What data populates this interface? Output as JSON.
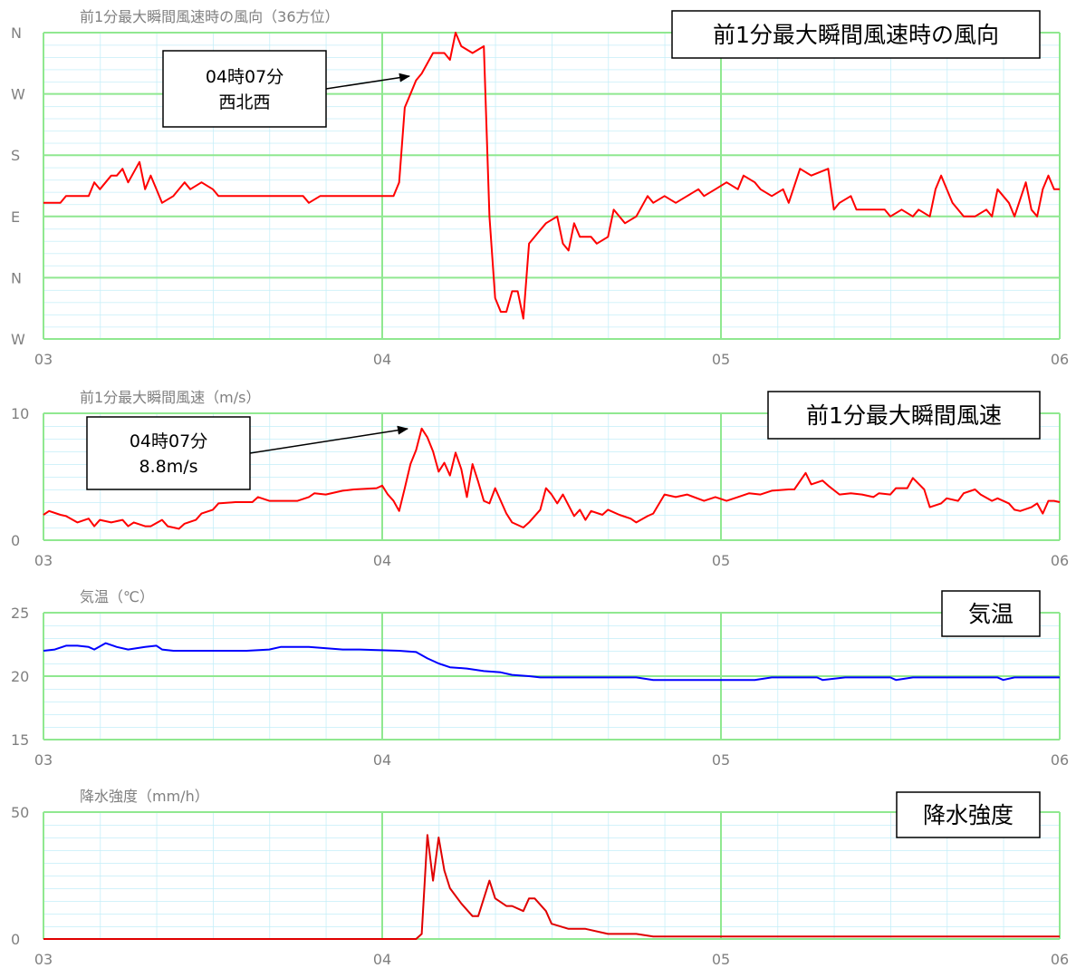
{
  "chart_data": [
    {
      "type": "line",
      "title": "前1分最大瞬間風速時の風向（36方位）",
      "label": "前1分最大瞬間風速時の風向",
      "annotation": [
        "04時07分",
        "西北西"
      ],
      "color": "#ff0000",
      "grid": true,
      "xlim": [
        180,
        360
      ],
      "xticks": [
        {
          "value": 180,
          "label": "03"
        },
        {
          "value": 240,
          "label": "04"
        },
        {
          "value": 300,
          "label": "05"
        },
        {
          "value": 360,
          "label": "06"
        }
      ],
      "ylim": [
        -90,
        360
      ],
      "yticks": [
        {
          "value": -90,
          "label": "W"
        },
        {
          "value": 0,
          "label": "N"
        },
        {
          "value": 90,
          "label": "E"
        },
        {
          "value": 180,
          "label": "S"
        },
        {
          "value": 270,
          "label": "W"
        },
        {
          "value": 360,
          "label": "N"
        }
      ],
      "x": [
        180,
        183,
        184,
        188,
        189,
        190,
        192,
        193,
        194,
        195,
        197,
        198,
        199,
        200,
        201,
        203,
        205,
        206,
        208,
        210,
        211,
        213,
        214,
        217,
        219,
        220,
        226,
        227,
        229,
        242,
        243,
        244,
        245,
        246,
        247,
        249,
        251,
        252,
        253,
        254,
        256,
        258,
        259,
        260,
        261,
        262,
        263,
        264,
        265,
        266,
        268,
        269,
        271,
        272,
        273,
        274,
        275,
        277,
        278,
        280,
        281,
        283,
        285,
        287,
        288,
        290,
        292,
        294,
        296,
        297,
        299,
        301,
        303,
        304,
        306,
        307,
        309,
        311,
        312,
        314,
        316,
        319,
        320,
        321,
        323,
        324,
        326,
        329,
        330,
        332,
        334,
        335,
        337,
        338,
        339,
        341,
        343,
        345,
        347,
        348,
        349,
        351,
        352,
        354,
        355,
        356,
        357,
        358,
        359,
        360
      ],
      "values": [
        110,
        110,
        120,
        120,
        140,
        130,
        150,
        150,
        160,
        140,
        170,
        130,
        150,
        130,
        110,
        120,
        140,
        130,
        140,
        130,
        120,
        120,
        120,
        120,
        120,
        120,
        120,
        110,
        120,
        120,
        140,
        250,
        270,
        290,
        300,
        330,
        330,
        320,
        360,
        340,
        330,
        340,
        90,
        -30,
        -50,
        -50,
        -20,
        -20,
        -60,
        50,
        70,
        80,
        90,
        50,
        40,
        80,
        60,
        60,
        50,
        60,
        100,
        80,
        90,
        120,
        110,
        120,
        110,
        120,
        130,
        120,
        130,
        140,
        130,
        150,
        140,
        130,
        120,
        130,
        110,
        160,
        150,
        160,
        100,
        110,
        120,
        100,
        100,
        100,
        90,
        100,
        90,
        100,
        90,
        130,
        150,
        110,
        90,
        90,
        100,
        90,
        130,
        110,
        90,
        140,
        100,
        90,
        130,
        150,
        130,
        130
      ]
    },
    {
      "type": "line",
      "title": "前1分最大瞬間風速（m/s）",
      "label": "前1分最大瞬間風速",
      "annotation": [
        "04時07分",
        "8.8m/s"
      ],
      "color": "#ff0000",
      "grid": true,
      "xlim": [
        180,
        360
      ],
      "xticks": [
        {
          "value": 180,
          "label": "03"
        },
        {
          "value": 240,
          "label": "04"
        },
        {
          "value": 300,
          "label": "05"
        },
        {
          "value": 360,
          "label": "06"
        }
      ],
      "ylim": [
        0,
        10
      ],
      "yticks": [
        0,
        10
      ],
      "x": [
        180,
        181,
        183,
        184,
        186,
        188,
        189,
        190,
        192,
        194,
        195,
        196,
        198,
        199,
        201,
        202,
        204,
        205,
        207,
        208,
        210,
        211,
        214,
        217,
        218,
        220,
        225,
        227,
        228,
        230,
        233,
        235,
        239,
        240,
        241,
        242,
        243,
        244,
        245,
        246,
        247,
        248,
        249,
        250,
        251,
        252,
        253,
        254,
        255,
        256,
        257,
        258,
        259,
        260,
        262,
        263,
        265,
        266,
        268,
        269,
        270,
        271,
        272,
        274,
        275,
        276,
        277,
        279,
        280,
        282,
        284,
        285,
        287,
        288,
        290,
        292,
        294,
        297,
        299,
        301,
        303,
        305,
        307,
        309,
        312,
        313,
        315,
        316,
        318,
        319,
        321,
        323,
        325,
        327,
        328,
        330,
        331,
        333,
        334,
        336,
        337,
        339,
        340,
        342,
        343,
        345,
        346,
        348,
        349,
        351,
        352,
        353,
        355,
        356,
        357,
        358,
        359,
        360
      ],
      "values": [
        2.0,
        2.3,
        2.0,
        1.9,
        1.4,
        1.7,
        1.1,
        1.6,
        1.4,
        1.6,
        1.1,
        1.4,
        1.1,
        1.1,
        1.6,
        1.1,
        0.9,
        1.3,
        1.6,
        2.1,
        2.4,
        2.9,
        3.0,
        3.0,
        3.4,
        3.1,
        3.1,
        3.4,
        3.7,
        3.6,
        3.9,
        4.0,
        4.1,
        4.3,
        3.6,
        3.1,
        2.3,
        4.1,
        6.0,
        7.1,
        8.8,
        8.1,
        7.0,
        5.4,
        6.1,
        5.1,
        6.9,
        5.6,
        3.4,
        6.0,
        4.6,
        3.1,
        2.9,
        4.1,
        2.1,
        1.4,
        1.0,
        1.4,
        2.4,
        4.1,
        3.6,
        2.9,
        3.6,
        1.9,
        2.4,
        1.6,
        2.3,
        2.0,
        2.4,
        2.0,
        1.7,
        1.4,
        1.9,
        2.1,
        3.6,
        3.4,
        3.6,
        3.1,
        3.4,
        3.1,
        3.4,
        3.7,
        3.6,
        3.9,
        4.0,
        4.0,
        5.3,
        4.4,
        4.7,
        4.3,
        3.6,
        3.7,
        3.6,
        3.4,
        3.7,
        3.6,
        4.1,
        4.1,
        4.9,
        4.0,
        2.6,
        2.9,
        3.3,
        3.1,
        3.7,
        4.0,
        3.6,
        3.1,
        3.3,
        2.9,
        2.4,
        2.3,
        2.6,
        2.9,
        2.1,
        3.1,
        3.1,
        3.0
      ]
    },
    {
      "type": "line",
      "title": "気温（℃）",
      "label": "気温",
      "color": "#0000ff",
      "grid": true,
      "xlim": [
        180,
        360
      ],
      "xticks": [
        {
          "value": 180,
          "label": "03"
        },
        {
          "value": 240,
          "label": "04"
        },
        {
          "value": 300,
          "label": "05"
        },
        {
          "value": 360,
          "label": "06"
        }
      ],
      "ylim": [
        15,
        25
      ],
      "yticks": [
        15,
        20,
        25
      ],
      "x": [
        180,
        182,
        184,
        186,
        188,
        189,
        191,
        193,
        195,
        198,
        200,
        201,
        203,
        208,
        216,
        220,
        222,
        227,
        233,
        236,
        243,
        246,
        248,
        250,
        252,
        255,
        258,
        261,
        263,
        266,
        268,
        275,
        285,
        288,
        299,
        306,
        309,
        317,
        318,
        322,
        330,
        331,
        334,
        349,
        350,
        352,
        360
      ],
      "values": [
        22.0,
        22.1,
        22.4,
        22.4,
        22.3,
        22.1,
        22.6,
        22.3,
        22.1,
        22.3,
        22.4,
        22.1,
        22.0,
        22.0,
        22.0,
        22.1,
        22.3,
        22.3,
        22.1,
        22.1,
        22.0,
        21.9,
        21.4,
        21.0,
        20.7,
        20.6,
        20.4,
        20.3,
        20.1,
        20.0,
        19.9,
        19.9,
        19.9,
        19.7,
        19.7,
        19.7,
        19.9,
        19.9,
        19.7,
        19.9,
        19.9,
        19.7,
        19.9,
        19.9,
        19.7,
        19.9,
        19.9
      ]
    },
    {
      "type": "line",
      "title": "降水強度（mm/h）",
      "label": "降水強度",
      "color": "#e00000",
      "grid": true,
      "xlim": [
        180,
        360
      ],
      "xticks": [
        {
          "value": 180,
          "label": "03"
        },
        {
          "value": 240,
          "label": "04"
        },
        {
          "value": 300,
          "label": "05"
        },
        {
          "value": 360,
          "label": "06"
        }
      ],
      "ylim": [
        0,
        50
      ],
      "yticks": [
        0,
        50
      ],
      "x": [
        180,
        246,
        247,
        248,
        249,
        250,
        251,
        252,
        253,
        254,
        256,
        257,
        258,
        259,
        260,
        262,
        263,
        265,
        266,
        267,
        269,
        270,
        273,
        276,
        280,
        285,
        288,
        300,
        305,
        360
      ],
      "values": [
        0,
        0,
        2,
        41,
        23,
        40,
        27,
        20,
        17,
        14,
        9,
        9,
        16,
        23,
        16,
        13,
        13,
        11,
        16,
        16,
        11,
        6,
        4,
        4,
        2,
        2,
        1,
        1,
        1,
        1
      ]
    }
  ]
}
